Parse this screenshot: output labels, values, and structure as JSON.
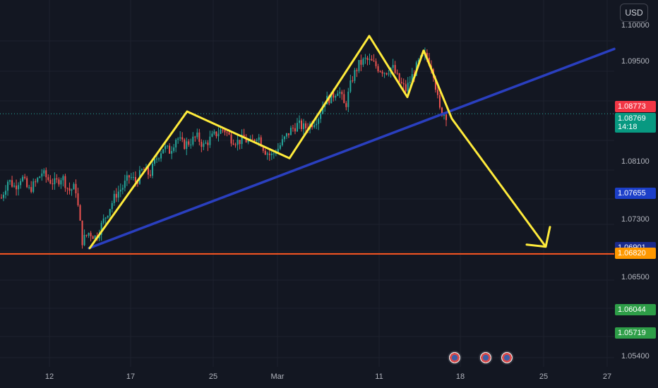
{
  "currency": "USD",
  "colors": {
    "background": "#131722",
    "up": "#26a69a",
    "down": "#ef5350",
    "pattern": "#ffeb3b",
    "trendline": "#2a3fbf",
    "support": "#ff5722"
  },
  "chart_data": {
    "type": "candlestick",
    "title": "",
    "ylim": [
      1.0525,
      1.1035
    ],
    "y_ticks": [
      "1.10000",
      "1.09500",
      "1.08100",
      "1.07300",
      "1.06500",
      "1.05400"
    ],
    "x_ticks": [
      "12",
      "17",
      "25",
      "Mar",
      "11",
      "18",
      "25",
      "27"
    ],
    "price_labels": [
      {
        "value": "1.08773",
        "color": "#f23645"
      },
      {
        "value": "1.08769",
        "sub": "14:18",
        "color": "#089981"
      },
      {
        "value": "1.07655",
        "color": "#1c3fc8"
      },
      {
        "value": "1.06901",
        "color": "#1a2a8c"
      },
      {
        "value": "1.06820",
        "color": "#ff9800"
      },
      {
        "value": "1.06044",
        "color": "#2e9e48"
      },
      {
        "value": "1.05719",
        "color": "#2e9e48"
      }
    ],
    "current_price": 1.08769,
    "support_level": 1.0682,
    "trendline": {
      "start": 1.069,
      "end": 1.0967
    },
    "pattern_path": [
      1.069,
      1.088,
      1.0815,
      1.0985,
      1.09,
      1.0965,
      1.087,
      1.0692
    ],
    "projection_arrow_tip": 1.0692,
    "price_path": [
      1.076,
      1.0785,
      1.0775,
      1.079,
      1.077,
      1.078,
      1.0795,
      1.0785,
      1.078,
      1.079,
      1.077,
      1.0775,
      1.07,
      1.0712,
      1.0705,
      1.0725,
      1.0745,
      1.0765,
      1.0775,
      1.079,
      1.0782,
      1.08,
      1.0792,
      1.0815,
      1.083,
      1.0825,
      1.0845,
      1.0833,
      1.0838,
      1.0845,
      1.0832,
      1.0842,
      1.085,
      1.0856,
      1.0843,
      1.0838,
      1.0842,
      1.0835,
      1.0848,
      1.0827,
      1.0818,
      1.0828,
      1.0842,
      1.0855,
      1.0862,
      1.0857,
      1.0863,
      1.0872,
      1.0895,
      1.09,
      1.0912,
      1.0885,
      1.0925,
      1.0945,
      1.0952,
      1.0948,
      1.094,
      1.0935,
      1.0942,
      1.0922,
      1.091,
      1.093,
      1.095,
      1.0958,
      1.094,
      1.0882,
      1.0875
    ],
    "events": [
      "flag-events-group",
      "flag-event",
      "flag-event"
    ]
  }
}
